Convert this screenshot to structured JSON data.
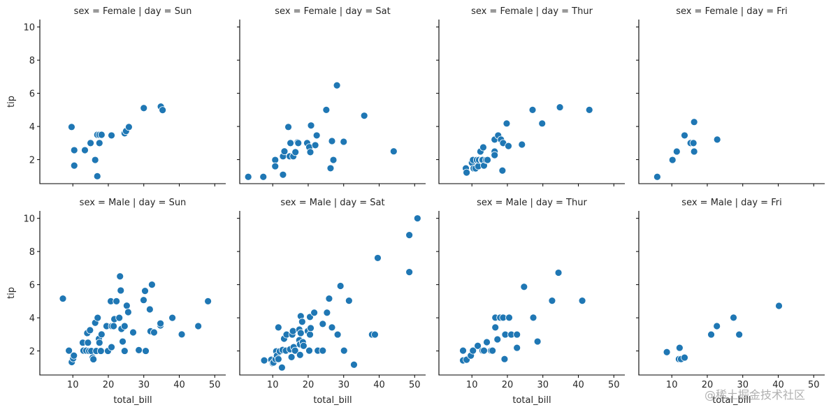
{
  "watermark": "@稀土掘金技术社区",
  "chart_data": {
    "type": "scatter",
    "layout": "facet-grid 2 rows (sex) × 4 columns (day)",
    "xlabel": "total_bill",
    "ylabel": "tip",
    "xlim": [
      0.7,
      53.1
    ],
    "ylim": [
      0.55,
      10.45
    ],
    "xticks": [
      10,
      20,
      30,
      40,
      50
    ],
    "yticks": [
      2,
      4,
      6,
      8,
      10
    ],
    "grid": false,
    "marker_color": "#1f77b4",
    "marker_edge": "#ffffff",
    "panels": [
      {
        "title": "sex = Female | day = Sun",
        "row": 0,
        "col": 0,
        "points": [
          [
            9.65,
            3.97
          ],
          [
            10.4,
            2.57
          ],
          [
            10.4,
            1.64
          ],
          [
            13.4,
            2.57
          ],
          [
            15.0,
            3.0
          ],
          [
            16.3,
            1.98
          ],
          [
            16.9,
            1.0
          ],
          [
            16.9,
            3.5
          ],
          [
            17.5,
            3.5
          ],
          [
            18.1,
            3.5
          ],
          [
            17.5,
            3.0
          ],
          [
            20.9,
            3.46
          ],
          [
            24.6,
            3.59
          ],
          [
            25.0,
            3.72
          ],
          [
            25.8,
            3.97
          ],
          [
            30.0,
            5.11
          ],
          [
            34.8,
            5.2
          ],
          [
            35.3,
            4.99
          ]
        ]
      },
      {
        "title": "sex = Female | day = Sat",
        "row": 0,
        "col": 1,
        "points": [
          [
            3.1,
            0.96
          ],
          [
            7.35,
            0.96
          ],
          [
            10.7,
            1.98
          ],
          [
            10.7,
            1.6
          ],
          [
            12.9,
            1.09
          ],
          [
            12.9,
            2.2
          ],
          [
            13.3,
            2.5
          ],
          [
            14.4,
            3.97
          ],
          [
            14.8,
            2.2
          ],
          [
            15.0,
            3.0
          ],
          [
            15.8,
            2.2
          ],
          [
            16.4,
            2.45
          ],
          [
            17.0,
            3.04
          ],
          [
            17.2,
            3.0
          ],
          [
            19.7,
            3.0
          ],
          [
            20.3,
            2.75
          ],
          [
            20.6,
            2.45
          ],
          [
            20.8,
            4.06
          ],
          [
            22.0,
            2.87
          ],
          [
            22.4,
            3.46
          ],
          [
            25.1,
            5.0
          ],
          [
            26.3,
            1.48
          ],
          [
            26.7,
            3.12
          ],
          [
            27.1,
            1.98
          ],
          [
            28.1,
            6.48
          ],
          [
            30.0,
            3.08
          ],
          [
            35.8,
            4.65
          ],
          [
            44.1,
            2.5
          ]
        ]
      },
      {
        "title": "sex = Female | day = Thur",
        "row": 0,
        "col": 2,
        "points": [
          [
            8.3,
            1.47
          ],
          [
            8.5,
            1.22
          ],
          [
            10.0,
            1.81
          ],
          [
            10.3,
            1.98
          ],
          [
            10.5,
            1.47
          ],
          [
            11.05,
            1.47
          ],
          [
            11.4,
            1.98
          ],
          [
            11.8,
            1.6
          ],
          [
            12.0,
            1.98
          ],
          [
            12.4,
            2.49
          ],
          [
            12.8,
            1.98
          ],
          [
            13.0,
            1.98
          ],
          [
            13.2,
            2.74
          ],
          [
            13.4,
            1.64
          ],
          [
            14.0,
            1.98
          ],
          [
            14.4,
            1.98
          ],
          [
            16.4,
            3.21
          ],
          [
            16.4,
            2.49
          ],
          [
            16.4,
            2.27
          ],
          [
            17.4,
            3.46
          ],
          [
            18.2,
            3.21
          ],
          [
            18.8,
            3.0
          ],
          [
            18.6,
            1.34
          ],
          [
            19.8,
            4.18
          ],
          [
            20.3,
            2.82
          ],
          [
            24.1,
            2.91
          ],
          [
            27.1,
            5.0
          ],
          [
            29.8,
            4.18
          ],
          [
            34.8,
            5.16
          ],
          [
            43.1,
            5.0
          ]
        ]
      },
      {
        "title": "sex = Female | day = Fri",
        "row": 0,
        "col": 3,
        "points": [
          [
            5.9,
            0.96
          ],
          [
            10.2,
            1.98
          ],
          [
            11.4,
            2.49
          ],
          [
            13.6,
            3.46
          ],
          [
            15.3,
            3.0
          ],
          [
            16.1,
            3.0
          ],
          [
            16.3,
            2.49
          ],
          [
            16.3,
            4.27
          ],
          [
            22.8,
            3.21
          ]
        ]
      },
      {
        "title": "sex = Male | day = Sun",
        "row": 1,
        "col": 0,
        "points": [
          [
            7.2,
            5.16
          ],
          [
            8.9,
            2.02
          ],
          [
            9.7,
            1.33
          ],
          [
            10.1,
            1.55
          ],
          [
            10.3,
            1.72
          ],
          [
            12.8,
            2.5
          ],
          [
            13.0,
            2.02
          ],
          [
            13.8,
            2.02
          ],
          [
            14.26,
            2.5
          ],
          [
            14.06,
            3.08
          ],
          [
            14.6,
            2.0
          ],
          [
            14.85,
            3.25
          ],
          [
            15.2,
            2.0
          ],
          [
            15.6,
            1.6
          ],
          [
            15.8,
            1.5
          ],
          [
            16.6,
            2.0
          ],
          [
            16.3,
            3.7
          ],
          [
            17.0,
            4.0
          ],
          [
            17.35,
            2.73
          ],
          [
            17.5,
            2.5
          ],
          [
            18.1,
            3.0
          ],
          [
            17.9,
            2.0
          ],
          [
            19.5,
            3.5
          ],
          [
            19.9,
            2.0
          ],
          [
            20.7,
            5.0
          ],
          [
            20.9,
            2.23
          ],
          [
            21.0,
            3.5
          ],
          [
            21.5,
            3.5
          ],
          [
            21.7,
            3.92
          ],
          [
            22.3,
            5.0
          ],
          [
            23.1,
            4.0
          ],
          [
            23.3,
            6.5
          ],
          [
            23.5,
            5.65
          ],
          [
            23.7,
            3.33
          ],
          [
            24.05,
            2.57
          ],
          [
            24.6,
            2.0
          ],
          [
            24.6,
            3.5
          ],
          [
            25.2,
            4.73
          ],
          [
            25.6,
            4.34
          ],
          [
            27.0,
            3.12
          ],
          [
            28.6,
            2.05
          ],
          [
            29.95,
            5.07
          ],
          [
            30.35,
            5.62
          ],
          [
            30.55,
            2.0
          ],
          [
            31.7,
            4.51
          ],
          [
            31.9,
            3.19
          ],
          [
            32.3,
            6.0
          ],
          [
            32.9,
            3.12
          ],
          [
            34.7,
            3.54
          ],
          [
            34.7,
            3.66
          ],
          [
            38.05,
            4.0
          ],
          [
            40.7,
            3.0
          ],
          [
            45.35,
            3.5
          ],
          [
            48.1,
            5.0
          ]
        ]
      },
      {
        "title": "sex = Male | day = Sat",
        "row": 1,
        "col": 1,
        "points": [
          [
            7.6,
            1.43
          ],
          [
            9.6,
            1.47
          ],
          [
            10.0,
            1.26
          ],
          [
            10.2,
            1.3
          ],
          [
            10.8,
            1.51
          ],
          [
            11.0,
            1.98
          ],
          [
            11.2,
            1.72
          ],
          [
            11.6,
            1.51
          ],
          [
            11.6,
            3.42
          ],
          [
            12.0,
            1.98
          ],
          [
            12.6,
            1.0
          ],
          [
            12.8,
            2.06
          ],
          [
            13.2,
            2.74
          ],
          [
            13.7,
            2.02
          ],
          [
            13.9,
            2.99
          ],
          [
            14.9,
            2.1
          ],
          [
            15.3,
            1.63
          ],
          [
            15.5,
            2.99
          ],
          [
            15.7,
            3.2
          ],
          [
            15.9,
            2.23
          ],
          [
            16.3,
            2.02
          ],
          [
            17.5,
            2.65
          ],
          [
            17.5,
            3.29
          ],
          [
            17.7,
            1.76
          ],
          [
            17.7,
            2.4
          ],
          [
            17.9,
            3.08
          ],
          [
            17.9,
            4.1
          ],
          [
            18.3,
            3.76
          ],
          [
            18.5,
            2.53
          ],
          [
            18.7,
            2.31
          ],
          [
            19.9,
            3.2
          ],
          [
            20.3,
            2.02
          ],
          [
            20.5,
            4.05
          ],
          [
            20.5,
            2.99
          ],
          [
            20.7,
            3.38
          ],
          [
            21.7,
            4.31
          ],
          [
            22.7,
            2.02
          ],
          [
            24.1,
            3.63
          ],
          [
            24.1,
            2.02
          ],
          [
            25.3,
            4.31
          ],
          [
            25.9,
            5.16
          ],
          [
            26.7,
            3.42
          ],
          [
            28.3,
            2.99
          ],
          [
            29.1,
            5.92
          ],
          [
            30.1,
            2.02
          ],
          [
            31.5,
            5.03
          ],
          [
            32.9,
            1.17
          ],
          [
            38.0,
            2.99
          ],
          [
            38.8,
            2.99
          ],
          [
            39.6,
            7.61
          ],
          [
            48.5,
            6.76
          ],
          [
            48.5,
            8.99
          ],
          [
            50.8,
            10.0
          ]
        ]
      },
      {
        "title": "sex = Male | day = Thur",
        "row": 1,
        "col": 2,
        "points": [
          [
            7.5,
            2.02
          ],
          [
            7.5,
            1.43
          ],
          [
            8.5,
            1.47
          ],
          [
            9.7,
            1.72
          ],
          [
            10.3,
            2.02
          ],
          [
            11.65,
            2.31
          ],
          [
            13.0,
            2.02
          ],
          [
            13.4,
            2.02
          ],
          [
            14.2,
            2.53
          ],
          [
            15.4,
            2.02
          ],
          [
            15.8,
            2.02
          ],
          [
            16.6,
            4.01
          ],
          [
            16.6,
            3.42
          ],
          [
            17.2,
            2.7
          ],
          [
            17.97,
            4.01
          ],
          [
            18.8,
            4.01
          ],
          [
            19.2,
            1.51
          ],
          [
            19.4,
            2.99
          ],
          [
            20.5,
            4.01
          ],
          [
            21.1,
            2.99
          ],
          [
            22.7,
            2.99
          ],
          [
            22.7,
            2.19
          ],
          [
            24.7,
            5.87
          ],
          [
            27.3,
            4.01
          ],
          [
            28.5,
            2.57
          ],
          [
            32.6,
            5.03
          ],
          [
            34.4,
            6.72
          ],
          [
            41.1,
            5.03
          ]
        ]
      },
      {
        "title": "sex = Male | day = Fri",
        "row": 1,
        "col": 3,
        "points": [
          [
            8.6,
            1.93
          ],
          [
            12.2,
            2.19
          ],
          [
            12.0,
            1.51
          ],
          [
            12.6,
            1.51
          ],
          [
            13.6,
            1.6
          ],
          [
            21.1,
            2.99
          ],
          [
            22.7,
            3.5
          ],
          [
            27.4,
            4.01
          ],
          [
            29.0,
            2.99
          ],
          [
            40.2,
            4.72
          ]
        ]
      }
    ]
  }
}
